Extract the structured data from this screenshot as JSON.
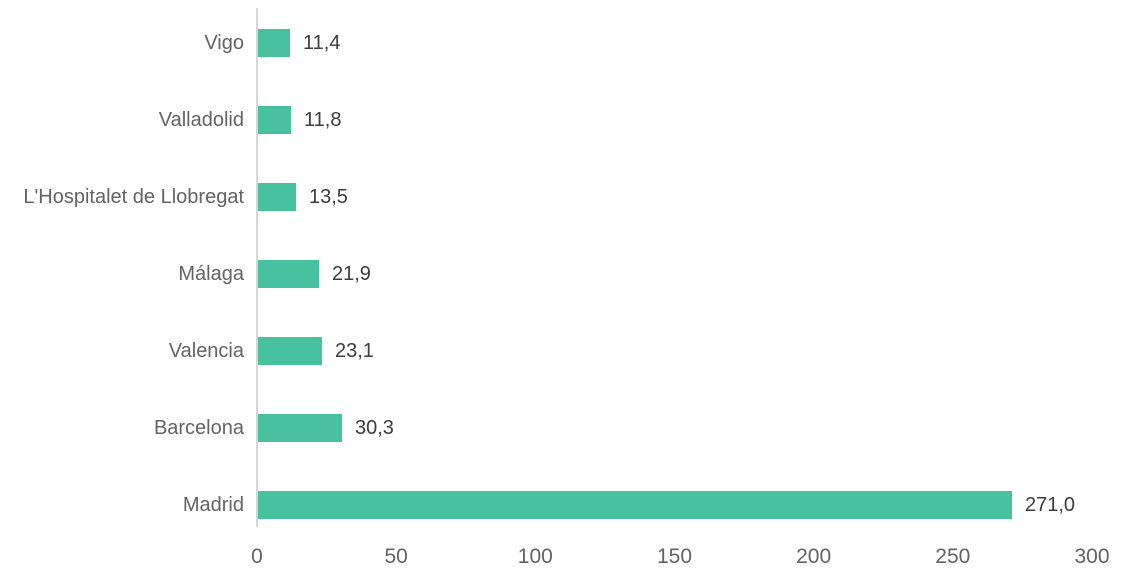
{
  "chart_data": {
    "type": "bar",
    "orientation": "horizontal",
    "title": "",
    "xlabel": "",
    "ylabel": "",
    "grid": false,
    "legend": false,
    "categories": [
      "Vigo",
      "Valladolid",
      "L'Hospitalet de Llobregat",
      "Málaga",
      "Valencia",
      "Barcelona",
      "Madrid"
    ],
    "values": [
      11.4,
      11.8,
      13.5,
      21.9,
      23.1,
      30.3,
      271.0
    ],
    "value_labels": [
      "11,4",
      "11,8",
      "13,5",
      "21,9",
      "23,1",
      "30,3",
      "271,0"
    ],
    "xlim": [
      0,
      300
    ],
    "x_ticks": [
      0,
      50,
      100,
      150,
      200,
      250,
      300
    ],
    "x_tick_labels": [
      "0",
      "50",
      "100",
      "150",
      "200",
      "250",
      "300"
    ]
  },
  "colors": {
    "bar": "#48c19e",
    "category_label": "#636363",
    "value_label": "#3d3d3d",
    "tick_label": "#636363",
    "axis_line": "#d6d6d6",
    "background": "#ffffff"
  }
}
